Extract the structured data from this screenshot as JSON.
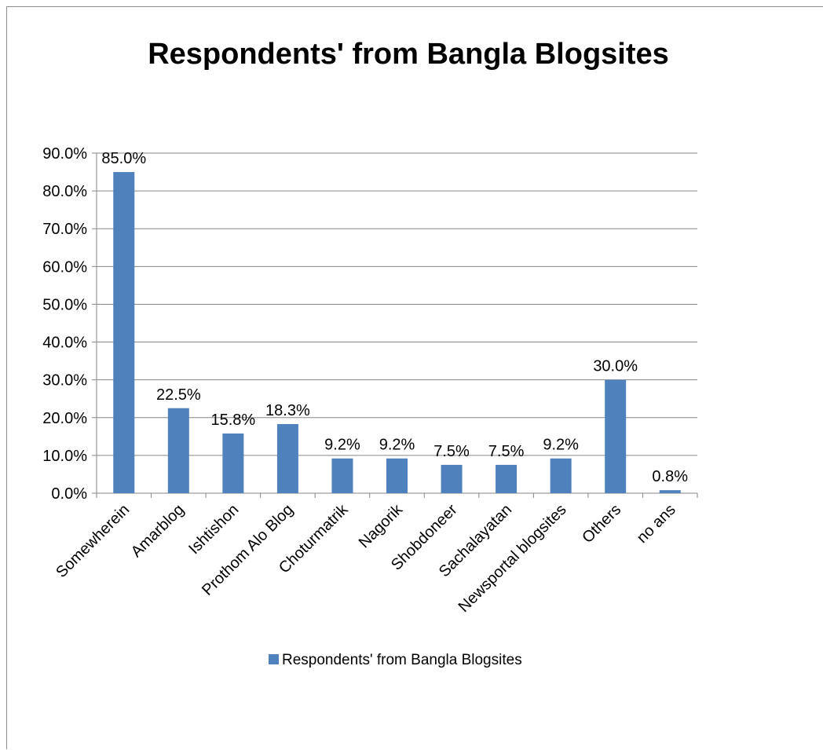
{
  "chart_data": {
    "type": "bar",
    "title": "Respondents' from Bangla Blogsites",
    "xlabel": "",
    "ylabel": "",
    "categories": [
      "Somewherein",
      "Amarblog",
      "Ishtishon",
      "Prothom Alo Blog",
      "Choturmatrik",
      "Nagorik",
      "Shobdoneer",
      "Sachalayatan",
      "Newsportal blogsites",
      "Others",
      "no ans"
    ],
    "series": [
      {
        "name": "Respondents' from Bangla Blogsites",
        "values": [
          85.0,
          22.5,
          15.8,
          18.3,
          9.2,
          9.2,
          7.5,
          7.5,
          9.2,
          30.0,
          0.8
        ],
        "labels": [
          "85.0%",
          "22.5%",
          "15.8%",
          "18.3%",
          "9.2%",
          "9.2%",
          "7.5%",
          "7.5%",
          "9.2%",
          "30.0%",
          "0.8%"
        ],
        "color": "#4f81bd"
      }
    ],
    "ylim": [
      0,
      90
    ],
    "yticks": [
      "0.0%",
      "10.0%",
      "20.0%",
      "30.0%",
      "40.0%",
      "50.0%",
      "60.0%",
      "70.0%",
      "80.0%",
      "90.0%"
    ],
    "grid": true,
    "legend": "bottom",
    "colors": {
      "bar": "#4f81bd",
      "grid": "#868686",
      "axis": "#868686"
    }
  }
}
